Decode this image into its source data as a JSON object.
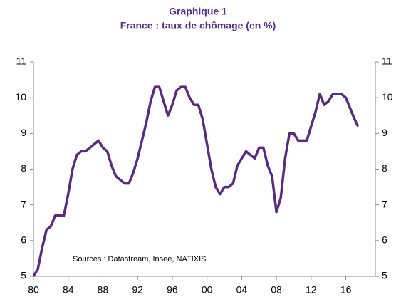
{
  "chart_data": {
    "type": "line",
    "title": "Graphique 1",
    "subtitle": "France : taux de chômage (en %)",
    "annotation": "Sources : Datastream, Insee, NATIXIS",
    "x": [
      1980,
      1980.5,
      1981,
      1981.5,
      1982,
      1982.5,
      1983,
      1983.5,
      1984,
      1984.5,
      1985,
      1985.5,
      1986,
      1986.5,
      1987,
      1987.5,
      1988,
      1988.5,
      1989,
      1989.5,
      1990,
      1990.5,
      1991,
      1991.5,
      1992,
      1992.5,
      1993,
      1993.5,
      1994,
      1994.5,
      1995,
      1995.5,
      1996,
      1996.5,
      1997,
      1997.5,
      1998,
      1998.5,
      1999,
      1999.5,
      2000,
      2000.5,
      2001,
      2001.5,
      2002,
      2002.5,
      2003,
      2003.5,
      2004,
      2004.5,
      2005,
      2005.5,
      2006,
      2006.5,
      2007,
      2007.5,
      2008,
      2008.5,
      2009,
      2009.5,
      2010,
      2010.5,
      2011,
      2011.5,
      2012,
      2012.5,
      2013,
      2013.5,
      2014,
      2014.5,
      2015,
      2015.5,
      2016,
      2016.5,
      2017,
      2017.4
    ],
    "series": [
      {
        "name": "France",
        "color": "#5a2a82",
        "values": [
          5.0,
          5.2,
          5.8,
          6.3,
          6.4,
          6.7,
          6.7,
          6.7,
          7.3,
          8.0,
          8.4,
          8.5,
          8.5,
          8.6,
          8.7,
          8.8,
          8.6,
          8.5,
          8.1,
          7.8,
          7.7,
          7.6,
          7.6,
          7.9,
          8.3,
          8.8,
          9.3,
          9.9,
          10.3,
          10.3,
          9.9,
          9.5,
          9.8,
          10.2,
          10.3,
          10.3,
          10.0,
          9.8,
          9.8,
          9.4,
          8.7,
          8.0,
          7.5,
          7.3,
          7.5,
          7.5,
          7.6,
          8.1,
          8.3,
          8.5,
          8.4,
          8.3,
          8.6,
          8.6,
          8.1,
          7.8,
          6.8,
          7.2,
          8.3,
          9.0,
          9.0,
          8.8,
          8.8,
          8.8,
          9.2,
          9.6,
          10.1,
          9.8,
          9.9,
          10.1,
          10.1,
          10.1,
          10.0,
          9.7,
          9.4,
          9.2
        ]
      }
    ],
    "xlim": [
      1980,
      2019.4
    ],
    "xticks": [
      {
        "value": 1980,
        "label": "80"
      },
      {
        "value": 1984,
        "label": "84"
      },
      {
        "value": 1988,
        "label": "88"
      },
      {
        "value": 1992,
        "label": "92"
      },
      {
        "value": 1996,
        "label": "96"
      },
      {
        "value": 2000,
        "label": "00"
      },
      {
        "value": 2004,
        "label": "04"
      },
      {
        "value": 2008,
        "label": "08"
      },
      {
        "value": 2012,
        "label": "12"
      },
      {
        "value": 2016,
        "label": "16"
      }
    ],
    "ylim": [
      5,
      11
    ],
    "yticks": [
      5,
      6,
      7,
      8,
      9,
      10,
      11
    ],
    "y2lim": [
      5,
      11
    ],
    "y2ticks": [
      5,
      6,
      7,
      8,
      9,
      10,
      11
    ]
  }
}
